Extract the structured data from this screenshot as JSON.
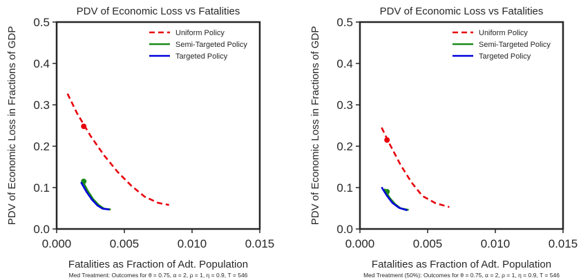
{
  "chart_data": [
    {
      "type": "line",
      "title": "PDV of Economic Loss vs  Fatalities",
      "xlabel": "Fatalities as Fraction of Adt. Population",
      "ylabel": "PDV of Economic Loss in Fractions of GDP",
      "caption": "Med Treatment: Outcomes for θ = 0.75,  α = 2, ρ = 1, η = 0.9,  T = 546",
      "xlim": [
        0.0,
        0.015
      ],
      "ylim": [
        0.0,
        0.5
      ],
      "xticks": [
        "0.000",
        "0.005",
        "0.010",
        "0.015"
      ],
      "yticks": [
        "0.0",
        "0.1",
        "0.2",
        "0.3",
        "0.4",
        "0.5"
      ],
      "grid": false,
      "legend_position": "top-right",
      "series": [
        {
          "name": "Uniform Policy",
          "color": "#e8000b",
          "dash": "dashed",
          "x": [
            0.0008,
            0.0015,
            0.0025,
            0.0035,
            0.0045,
            0.0055,
            0.0065,
            0.0075,
            0.0083
          ],
          "y": [
            0.327,
            0.28,
            0.225,
            0.178,
            0.138,
            0.105,
            0.078,
            0.063,
            0.058
          ],
          "marker": {
            "x": 0.002,
            "y": 0.248
          }
        },
        {
          "name": "Semi-Targeted Policy",
          "color": "#1a8a1a",
          "dash": "solid",
          "x": [
            0.0019,
            0.0023,
            0.0027,
            0.0031,
            0.0035,
            0.004
          ],
          "y": [
            0.117,
            0.092,
            0.072,
            0.058,
            0.049,
            0.047
          ],
          "marker": {
            "x": 0.002,
            "y": 0.115
          }
        },
        {
          "name": "Targeted Policy",
          "color": "#0000dd",
          "dash": "solid",
          "x": [
            0.0018,
            0.0022,
            0.0026,
            0.003,
            0.0034,
            0.0039
          ],
          "y": [
            0.113,
            0.09,
            0.071,
            0.057,
            0.049,
            0.047
          ]
        }
      ]
    },
    {
      "type": "line",
      "title": "PDV of Economic Loss vs  Fatalities",
      "xlabel": "Fatalities as Fraction of Adt. Population",
      "ylabel": "PDV of Economic Loss in Fractions of GDP",
      "caption": "Med Treatment (50%): Outcomes for θ = 0.75,  α = 2, ρ = 1, η = 0.9,  T = 546",
      "xlim": [
        0.0,
        0.015
      ],
      "ylim": [
        0.0,
        0.5
      ],
      "xticks": [
        "0.000",
        "0.005",
        "0.010",
        "0.015"
      ],
      "yticks": [
        "0.0",
        "0.1",
        "0.2",
        "0.3",
        "0.4",
        "0.5"
      ],
      "grid": false,
      "legend_position": "top-right",
      "series": [
        {
          "name": "Uniform Policy",
          "color": "#e8000b",
          "dash": "dashed",
          "x": [
            0.0016,
            0.0022,
            0.003,
            0.0038,
            0.0046,
            0.0056,
            0.0066
          ],
          "y": [
            0.245,
            0.205,
            0.155,
            0.113,
            0.08,
            0.062,
            0.053
          ],
          "marker": {
            "x": 0.002,
            "y": 0.215
          }
        },
        {
          "name": "Semi-Targeted Policy",
          "color": "#1a8a1a",
          "dash": "solid",
          "x": [
            0.0018,
            0.0022,
            0.0026,
            0.003,
            0.0036
          ],
          "y": [
            0.097,
            0.075,
            0.06,
            0.05,
            0.046
          ],
          "marker": {
            "x": 0.002,
            "y": 0.09
          }
        },
        {
          "name": "Targeted Policy",
          "color": "#0000dd",
          "dash": "solid",
          "x": [
            0.0016,
            0.002,
            0.0024,
            0.0029,
            0.0035
          ],
          "y": [
            0.101,
            0.08,
            0.063,
            0.051,
            0.045
          ]
        }
      ]
    }
  ]
}
